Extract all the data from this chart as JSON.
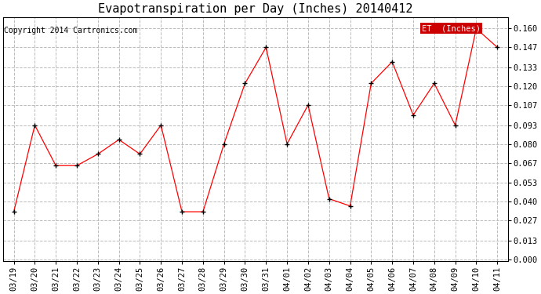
{
  "title": "Evapotranspiration per Day (Inches) 20140412",
  "copyright_text": "Copyright 2014 Cartronics.com",
  "legend_label": "ET  (Inches)",
  "x_labels": [
    "03/19",
    "03/20",
    "03/21",
    "03/22",
    "03/23",
    "03/24",
    "03/25",
    "03/26",
    "03/27",
    "03/28",
    "03/29",
    "03/30",
    "03/31",
    "04/01",
    "04/02",
    "04/03",
    "04/04",
    "04/05",
    "04/06",
    "04/07",
    "04/08",
    "04/09",
    "04/10",
    "04/11"
  ],
  "y_values": [
    0.033,
    0.093,
    0.065,
    0.065,
    0.073,
    0.083,
    0.073,
    0.093,
    0.033,
    0.033,
    0.08,
    0.122,
    0.147,
    0.08,
    0.107,
    0.042,
    0.037,
    0.122,
    0.137,
    0.1,
    0.122,
    0.093,
    0.16,
    0.147
  ],
  "y_ticks": [
    0.0,
    0.013,
    0.027,
    0.04,
    0.053,
    0.067,
    0.08,
    0.093,
    0.107,
    0.12,
    0.133,
    0.147,
    0.16
  ],
  "line_color": "red",
  "marker": "+",
  "marker_color": "black",
  "marker_size": 5,
  "grid_color": "#bbbbbb",
  "grid_style": "--",
  "background_color": "#ffffff",
  "legend_bg": "#cc0000",
  "legend_text_color": "white",
  "title_fontsize": 11,
  "tick_fontsize": 7.5,
  "copyright_fontsize": 7
}
